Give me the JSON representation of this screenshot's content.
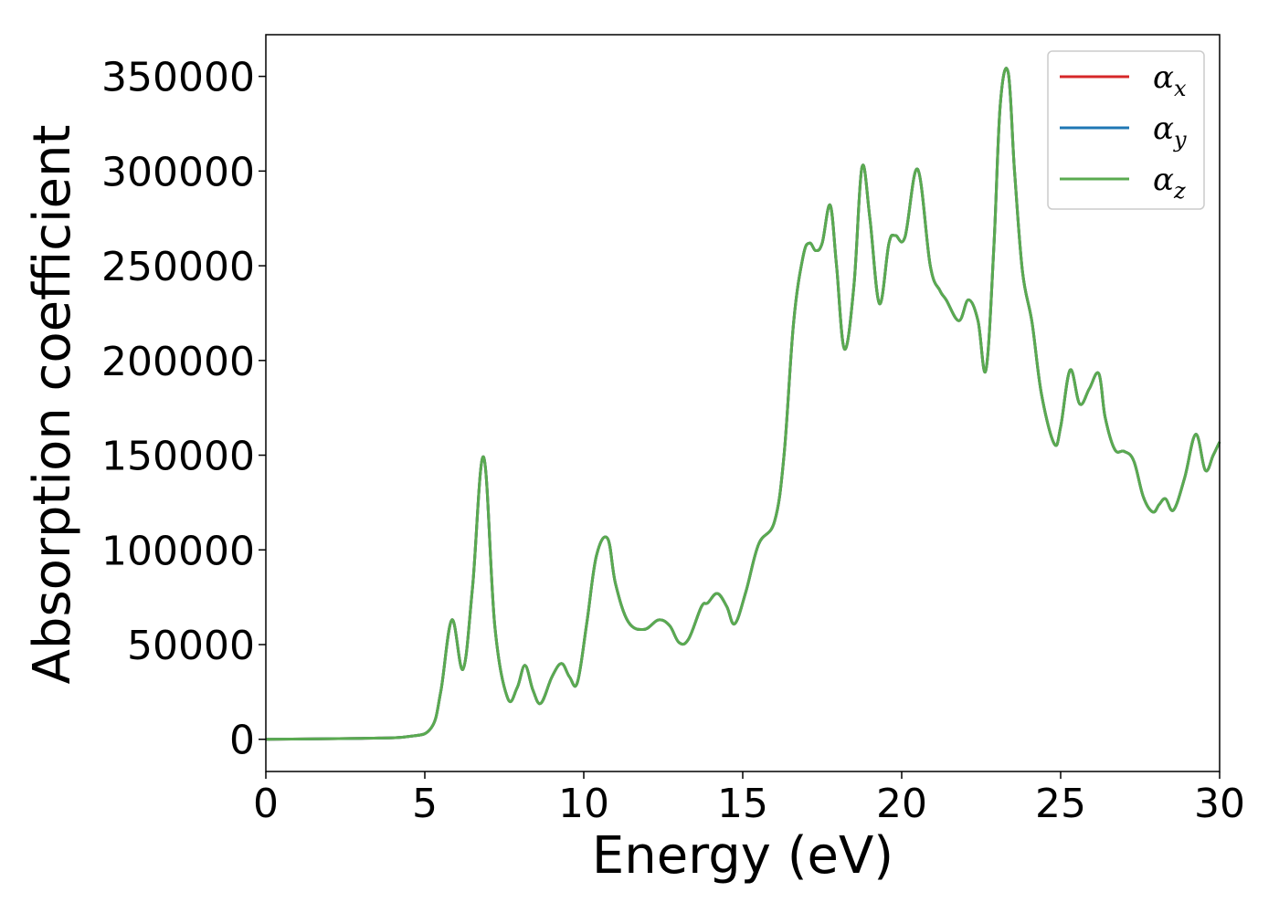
{
  "chart_data": {
    "type": "line",
    "xlabel": "Energy (eV)",
    "ylabel": "Absorption coefficient",
    "xlim": [
      0,
      30
    ],
    "ylim": [
      -17000,
      372000
    ],
    "xticks": [
      0,
      5,
      10,
      15,
      20,
      25,
      30
    ],
    "yticks": [
      0,
      50000,
      100000,
      150000,
      200000,
      250000,
      300000,
      350000
    ],
    "grid": false,
    "legend": "top-right",
    "series": [
      {
        "name": "α",
        "subscript": "x",
        "color": "#d62728"
      },
      {
        "name": "α",
        "subscript": "y",
        "color": "#1f77b4"
      },
      {
        "name": "α",
        "subscript": "z",
        "color": "#5aaa50"
      }
    ],
    "x": [
      0,
      3,
      4.5,
      5.2,
      5.5,
      5.85,
      6.2,
      6.5,
      6.85,
      7.2,
      7.6,
      7.9,
      8.15,
      8.4,
      8.65,
      9.0,
      9.3,
      9.55,
      9.8,
      10.1,
      10.4,
      10.75,
      11.0,
      11.4,
      11.9,
      12.35,
      12.7,
      13.0,
      13.3,
      13.7,
      13.9,
      14.2,
      14.5,
      14.75,
      15.1,
      15.5,
      16.0,
      16.3,
      16.6,
      16.9,
      17.1,
      17.3,
      17.5,
      17.75,
      17.95,
      18.2,
      18.5,
      18.75,
      19.0,
      19.3,
      19.6,
      19.8,
      20.1,
      20.5,
      20.9,
      21.2,
      21.4,
      21.8,
      22.1,
      22.4,
      22.65,
      22.9,
      23.1,
      23.35,
      23.55,
      23.8,
      24.1,
      24.4,
      24.8,
      25.0,
      25.3,
      25.6,
      25.9,
      26.2,
      26.4,
      26.7,
      27.0,
      27.3,
      27.6,
      27.9,
      28.1,
      28.3,
      28.55,
      28.9,
      29.25,
      29.55,
      29.8,
      30.0
    ],
    "values": [
      0,
      500,
      1500,
      6000,
      25000,
      63000,
      37000,
      80000,
      149000,
      60000,
      22000,
      27000,
      39000,
      26000,
      19000,
      33000,
      40000,
      33000,
      30000,
      62000,
      97000,
      106000,
      82000,
      62000,
      58000,
      63000,
      60000,
      51000,
      53000,
      70000,
      72000,
      77000,
      70000,
      61000,
      78000,
      103000,
      115000,
      150000,
      220000,
      255000,
      262000,
      258000,
      262000,
      282000,
      250000,
      206000,
      240000,
      302000,
      275000,
      230000,
      262000,
      266000,
      265000,
      301000,
      250000,
      237000,
      232000,
      221000,
      232000,
      221000,
      195000,
      260000,
      335000,
      352000,
      300000,
      247000,
      220000,
      182000,
      156000,
      165000,
      195000,
      177000,
      185000,
      193000,
      170000,
      153000,
      152000,
      147000,
      128000,
      120000,
      124000,
      127000,
      121000,
      138000,
      161000,
      142000,
      150000,
      157000
    ]
  }
}
